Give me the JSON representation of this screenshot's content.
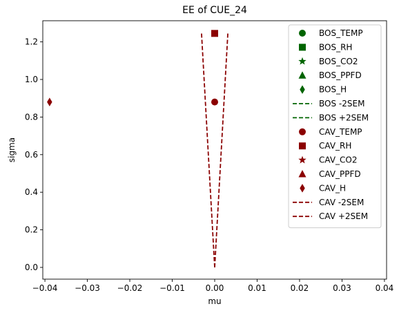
{
  "chart_data": {
    "type": "scatter",
    "title": "EE of CUE_24",
    "xlabel": "mu",
    "ylabel": "sigma",
    "xlim": [
      -0.0405,
      0.0405
    ],
    "ylim": [
      -0.0625,
      1.3125
    ],
    "xticks": [
      -0.04,
      -0.03,
      -0.02,
      -0.01,
      0.0,
      0.01,
      0.02,
      0.03,
      0.04
    ],
    "xtick_labels": [
      "−0.04",
      "−0.03",
      "−0.02",
      "−0.01",
      "0.00",
      "0.01",
      "0.02",
      "0.03",
      "0.04"
    ],
    "yticks": [
      0.0,
      0.2,
      0.4,
      0.6,
      0.8,
      1.0,
      1.2
    ],
    "ytick_labels": [
      "0.0",
      "0.2",
      "0.4",
      "0.6",
      "0.8",
      "1.0",
      "1.2"
    ],
    "grid": false,
    "legend_position": "top-right",
    "colors": {
      "BOS": "#006400",
      "CAV": "#8b0000"
    },
    "series": [
      {
        "name": "BOS_TEMP",
        "group": "BOS",
        "marker": "circle",
        "points": []
      },
      {
        "name": "BOS_RH",
        "group": "BOS",
        "marker": "square",
        "points": []
      },
      {
        "name": "BOS_CO2",
        "group": "BOS",
        "marker": "star",
        "points": []
      },
      {
        "name": "BOS_PPFD",
        "group": "BOS",
        "marker": "triangle",
        "points": []
      },
      {
        "name": "BOS_H",
        "group": "BOS",
        "marker": "diamond",
        "points": []
      },
      {
        "name": "BOS -2SEM",
        "group": "BOS",
        "marker": "dashed-line",
        "points": []
      },
      {
        "name": "BOS +2SEM",
        "group": "BOS",
        "marker": "dashed-line",
        "points": []
      },
      {
        "name": "CAV_TEMP",
        "group": "CAV",
        "marker": "circle",
        "points": [
          [
            0.0,
            0.88
          ]
        ]
      },
      {
        "name": "CAV_RH",
        "group": "CAV",
        "marker": "square",
        "points": [
          [
            0.0,
            1.245
          ]
        ]
      },
      {
        "name": "CAV_CO2",
        "group": "CAV",
        "marker": "star",
        "points": []
      },
      {
        "name": "CAV_PPFD",
        "group": "CAV",
        "marker": "triangle",
        "points": []
      },
      {
        "name": "CAV_H",
        "group": "CAV",
        "marker": "diamond",
        "points": [
          [
            -0.0389,
            0.88
          ]
        ]
      },
      {
        "name": "CAV -2SEM",
        "group": "CAV",
        "marker": "dashed-line",
        "points": [
          [
            0.0,
            0.0
          ],
          [
            -0.0031,
            1.245
          ]
        ]
      },
      {
        "name": "CAV +2SEM",
        "group": "CAV",
        "marker": "dashed-line",
        "points": [
          [
            0.0,
            0.0
          ],
          [
            0.0031,
            1.245
          ]
        ]
      }
    ]
  }
}
